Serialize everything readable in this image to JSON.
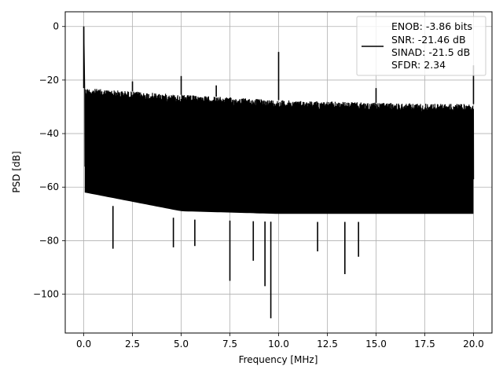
{
  "chart_data": {
    "type": "line",
    "title": "",
    "xlabel": "Frequency [MHz]",
    "ylabel": "PSD [dB]",
    "xlim": [
      -0.95,
      20.95
    ],
    "ylim": [
      -114.5,
      5.5
    ],
    "xticks": [
      0.0,
      2.5,
      5.0,
      7.5,
      10.0,
      12.5,
      15.0,
      17.5,
      20.0
    ],
    "xtick_labels": [
      "0.0",
      "2.5",
      "5.0",
      "7.5",
      "10.0",
      "12.5",
      "15.0",
      "17.5",
      "20.0"
    ],
    "yticks": [
      0,
      -20,
      -40,
      -60,
      -80,
      -100
    ],
    "ytick_labels": [
      "0",
      "−20",
      "−40",
      "−60",
      "−80",
      "−100"
    ],
    "grid": true,
    "legend_position": "top-right",
    "line_color": "#000000",
    "series": [
      {
        "legend_lines": [
          "ENOB: -3.86 bits",
          "SNR: -21.46 dB",
          "SINAD: -21.5 dB",
          "SFDR: 2.34"
        ],
        "noise_ceiling": [
          [
            0.05,
            -23
          ],
          [
            5,
            -25.5
          ],
          [
            10,
            -27.5
          ],
          [
            15,
            -28.5
          ],
          [
            20,
            -29
          ]
        ],
        "noise_floor": [
          [
            0.05,
            -65
          ],
          [
            5,
            -72
          ],
          [
            10,
            -73
          ],
          [
            15,
            -73
          ],
          [
            20,
            -73
          ]
        ],
        "spurs": [
          {
            "x": 0.0,
            "y": 0.0
          },
          {
            "x": 2.5,
            "y": -20.5
          },
          {
            "x": 5.0,
            "y": -18.5
          },
          {
            "x": 6.8,
            "y": -22
          },
          {
            "x": 10.0,
            "y": -9.5
          },
          {
            "x": 15.0,
            "y": -23
          },
          {
            "x": 20.0,
            "y": -14.5
          }
        ],
        "dips": [
          {
            "x": 1.5,
            "y": -83
          },
          {
            "x": 4.6,
            "y": -82.5
          },
          {
            "x": 5.7,
            "y": -82
          },
          {
            "x": 7.5,
            "y": -95
          },
          {
            "x": 8.7,
            "y": -87.5
          },
          {
            "x": 9.3,
            "y": -97
          },
          {
            "x": 9.6,
            "y": -109
          },
          {
            "x": 12.0,
            "y": -84
          },
          {
            "x": 13.4,
            "y": -92.5
          },
          {
            "x": 14.1,
            "y": -86
          }
        ]
      }
    ]
  }
}
